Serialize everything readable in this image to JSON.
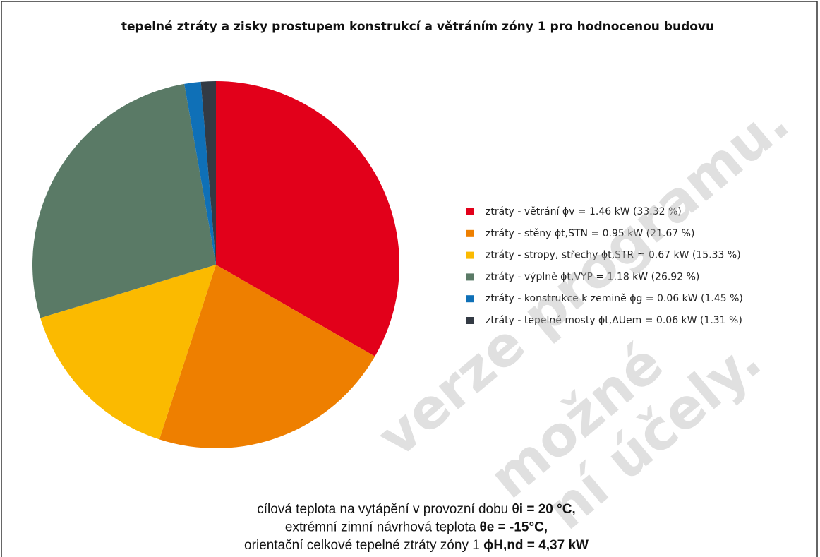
{
  "chart_data": {
    "type": "pie",
    "title": "tepelné ztráty a zisky prostupem konstrukcí a větráním zóny 1 pro hodnocenou budovu",
    "categories": [
      "ztráty - větrání ϕv = 1.46 kW (33.32 %)",
      "ztráty - stěny ϕt,STN = 0.95 kW (21.67 %)",
      "ztráty - stropy, střechy ϕt,STR = 0.67 kW (15.33 %)",
      "ztráty - výplně ϕt,VYP = 1.18 kW (26.92 %)",
      "ztráty - konstrukce k zemině ϕg = 0.06 kW (1.45 %)",
      "ztráty - tepelné mosty ϕt,ΔUem = 0.06 kW (1.31 %)"
    ],
    "values": [
      33.32,
      21.67,
      15.33,
      26.92,
      1.45,
      1.31
    ],
    "colors": [
      "#e2001a",
      "#ee7f00",
      "#fbba00",
      "#5a7a66",
      "#0f70b7",
      "#333a44"
    ],
    "legend": "right",
    "footer": [
      {
        "normal": "cílová teplota na vytápění v provozní dobu ",
        "bold": "θi = 20 °C,"
      },
      {
        "normal": "extrémní zimní návrhová teplota ",
        "bold": "θe = -15°C,"
      },
      {
        "normal": "orientační celkové tepelné ztráty zóny 1 ",
        "bold": "ϕH,nd = 4,37 kW"
      }
    ],
    "watermark": [
      "verze programu.",
      "možné",
      "ní účely."
    ]
  }
}
